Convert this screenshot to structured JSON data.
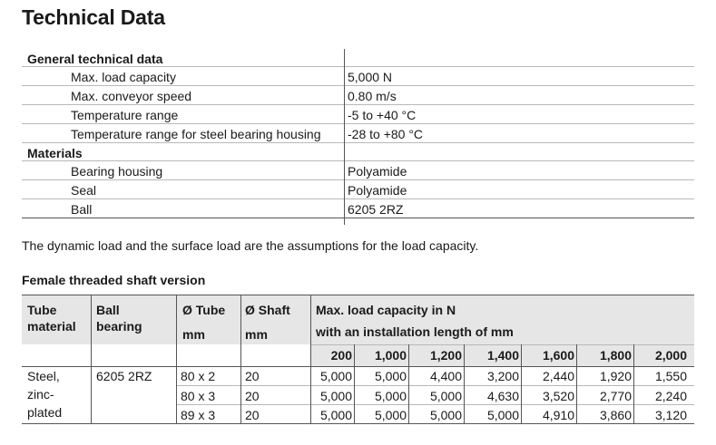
{
  "title": "Technical Data",
  "general": {
    "heading": "General technical data",
    "rows": [
      {
        "label": "Max. load capacity",
        "value": "5,000 N"
      },
      {
        "label": "Max. conveyor speed",
        "value": "0.80 m/s"
      },
      {
        "label": "Temperature range",
        "value": "-5 to +40 °C"
      },
      {
        "label": "Temperature range for steel bearing housing",
        "value": "-28 to +80 °C"
      }
    ]
  },
  "materials": {
    "heading": "Materials",
    "rows": [
      {
        "label": "Bearing housing",
        "value": "Polyamide"
      },
      {
        "label": "Seal",
        "value": "Polyamide"
      },
      {
        "label": "Ball",
        "value": "6205 2RZ"
      }
    ]
  },
  "note": "The dynamic load and the surface load are the assumptions for the load capacity.",
  "shaft": {
    "heading": "Female threaded shaft version",
    "headers": {
      "tube_material_1": "Tube",
      "tube_material_2": "material",
      "ball_bearing_1": "Ball",
      "ball_bearing_2": "bearing",
      "tube": "Ø Tube",
      "shaft": "Ø Shaft",
      "tube_unit": "mm",
      "shaft_unit": "mm",
      "load_1": "Max. load capacity in N",
      "load_2": "with an installation length of mm"
    },
    "lengths": [
      "200",
      "1,000",
      "1,200",
      "1,400",
      "1,600",
      "1,800",
      "2,000"
    ],
    "material": [
      "Steel,",
      "zinc-",
      "plated"
    ],
    "bearing": "6205 2RZ",
    "rows": [
      {
        "tube": "80 x 2",
        "shaft": "20",
        "loads": [
          "5,000",
          "5,000",
          "4,400",
          "3,200",
          "2,440",
          "1,920",
          "1,550"
        ]
      },
      {
        "tube": "80 x 3",
        "shaft": "20",
        "loads": [
          "5,000",
          "5,000",
          "5,000",
          "4,630",
          "3,520",
          "2,770",
          "2,240"
        ]
      },
      {
        "tube": "89 x 3",
        "shaft": "20",
        "loads": [
          "5,000",
          "5,000",
          "5,000",
          "5,000",
          "4,910",
          "3,860",
          "3,120"
        ]
      }
    ]
  }
}
